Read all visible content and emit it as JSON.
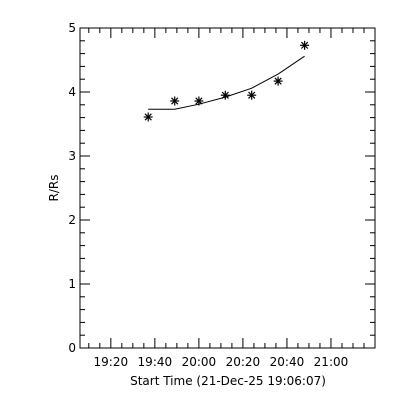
{
  "chart_data": {
    "type": "scatter",
    "xlabel": "Start Time (21-Dec-25 19:06:07)",
    "ylabel": "R/Rs",
    "xlim": [
      "19:06",
      "21:20"
    ],
    "ylim": [
      0,
      5
    ],
    "x_ticks": [
      "19:20",
      "19:40",
      "20:00",
      "20:20",
      "20:40",
      "21:00"
    ],
    "y_ticks": [
      "0",
      "1",
      "2",
      "3",
      "4",
      "5"
    ],
    "grid": false,
    "series": [
      {
        "style": "asterisk",
        "x": [
          "19:37",
          "19:49",
          "20:00",
          "20:12",
          "20:24",
          "20:36",
          "20:48"
        ],
        "y": [
          3.61,
          3.86,
          3.86,
          3.95,
          3.95,
          4.17,
          4.73
        ]
      },
      {
        "style": "line",
        "x": [
          "19:37",
          "19:49",
          "20:00",
          "20:12",
          "20:24",
          "20:36",
          "20:48"
        ],
        "y": [
          3.73,
          3.73,
          3.81,
          3.92,
          4.06,
          4.28,
          4.56
        ]
      }
    ]
  }
}
